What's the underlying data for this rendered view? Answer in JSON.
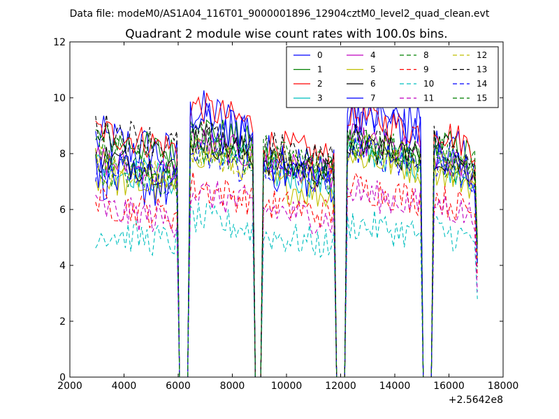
{
  "suptitle": "Data file: modeM0/AS1A04_116T01_9000001896_12904cztM0_level2_quad_clean.evt",
  "chart_data": {
    "type": "line",
    "title": "Quadrant 2 module wise count rates with 100.0s bins.",
    "xlabel": "",
    "ylabel": "",
    "x_offset_label": "+2.5642e8",
    "xlim": [
      2000,
      18000
    ],
    "ylim": [
      0,
      12
    ],
    "xticks": [
      2000,
      4000,
      6000,
      8000,
      10000,
      12000,
      14000,
      16000,
      18000
    ],
    "yticks": [
      0,
      2,
      4,
      6,
      8,
      10,
      12
    ],
    "grid": false,
    "legend_placement": "top-right",
    "legend_columns": 4,
    "x_range": [
      2950,
      17050
    ],
    "bin_seconds": 100,
    "gaps": [
      [
        5950,
        6450
      ],
      [
        8750,
        9150
      ],
      [
        11750,
        12250
      ],
      [
        14950,
        15450
      ]
    ],
    "segment_peaks": [
      [
        2950,
        6450
      ],
      [
        6450,
        9150
      ],
      [
        9150,
        12250
      ],
      [
        12250,
        15450
      ],
      [
        15450,
        17050
      ]
    ],
    "series": [
      {
        "name": "0",
        "color": "#0000ff",
        "dash": "solid",
        "levels": [
          8.2,
          9.2,
          7.6,
          9.0,
          8.0
        ]
      },
      {
        "name": "1",
        "color": "#008000",
        "dash": "solid",
        "levels": [
          8.3,
          8.7,
          7.6,
          8.1,
          8.2
        ]
      },
      {
        "name": "2",
        "color": "#ff0000",
        "dash": "solid",
        "levels": [
          8.5,
          9.4,
          8.1,
          9.1,
          8.6
        ]
      },
      {
        "name": "3",
        "color": "#00bfbf",
        "dash": "solid",
        "levels": [
          7.3,
          8.0,
          7.1,
          7.9,
          7.5
        ]
      },
      {
        "name": "4",
        "color": "#bf00bf",
        "dash": "solid",
        "levels": [
          7.5,
          8.2,
          7.4,
          8.2,
          7.6
        ]
      },
      {
        "name": "5",
        "color": "#bfbf00",
        "dash": "solid",
        "levels": [
          6.9,
          7.8,
          6.7,
          7.7,
          7.2
        ]
      },
      {
        "name": "6",
        "color": "#000000",
        "dash": "solid",
        "levels": [
          7.6,
          8.3,
          7.5,
          8.1,
          7.7
        ]
      },
      {
        "name": "7",
        "color": "#0000ff",
        "dash": "solid",
        "levels": [
          7.0,
          8.8,
          7.3,
          9.3,
          7.6
        ]
      },
      {
        "name": "8",
        "color": "#008000",
        "dash": "dashed",
        "levels": [
          7.2,
          8.0,
          7.3,
          8.0,
          7.5
        ]
      },
      {
        "name": "9",
        "color": "#ff0000",
        "dash": "dashed",
        "levels": [
          6.0,
          6.6,
          6.0,
          6.6,
          6.2
        ]
      },
      {
        "name": "10",
        "color": "#00bfbf",
        "dash": "dashed",
        "levels": [
          5.0,
          5.5,
          4.9,
          5.3,
          5.1
        ]
      },
      {
        "name": "11",
        "color": "#bf00bf",
        "dash": "dashed",
        "levels": [
          5.8,
          6.4,
          5.8,
          6.4,
          6.0
        ]
      },
      {
        "name": "12",
        "color": "#bfbf00",
        "dash": "dashed",
        "levels": [
          7.4,
          7.9,
          7.4,
          8.0,
          7.5
        ]
      },
      {
        "name": "13",
        "color": "#000000",
        "dash": "dashed",
        "levels": [
          8.6,
          8.4,
          8.0,
          8.3,
          8.2
        ]
      },
      {
        "name": "14",
        "color": "#0000ff",
        "dash": "dashed",
        "levels": [
          7.3,
          7.7,
          7.2,
          7.9,
          7.4
        ]
      },
      {
        "name": "15",
        "color": "#008000",
        "dash": "dashed",
        "levels": [
          7.8,
          8.3,
          7.8,
          8.3,
          7.9
        ]
      }
    ]
  }
}
